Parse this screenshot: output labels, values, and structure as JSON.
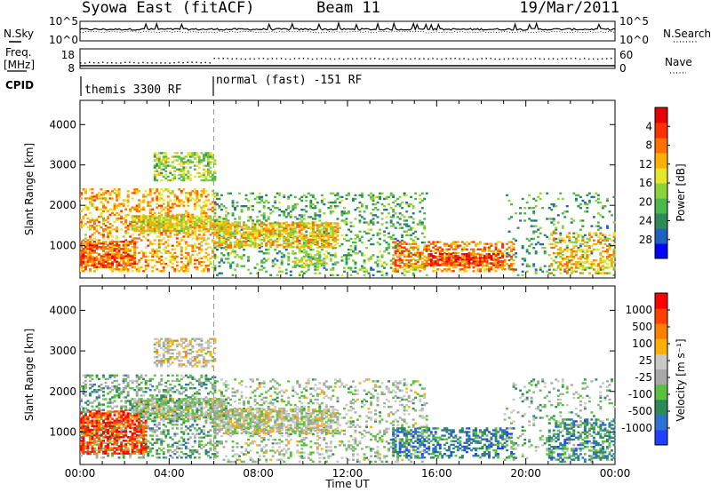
{
  "header": {
    "station": "Syowa East (fitACF)",
    "beam": "Beam 11",
    "date": "19/Mar/2011"
  },
  "strip_labels": {
    "nsky": "N.Sky",
    "nsky_ticks": [
      "10^5",
      "10^0"
    ],
    "nsearch": "N.Search",
    "freq": "Freq.",
    "freq_unit": "[MHz]",
    "freq_ticks": [
      "18",
      "8"
    ],
    "nave": "Nave",
    "nave_ticks": [
      "60",
      "0"
    ],
    "cpid": "CPID",
    "cpid_mode_1": "themis 3300 RF",
    "cpid_mode_2": "normal (fast) -151 RF"
  },
  "chart_data": [
    {
      "type": "heatmap",
      "title": "",
      "xlabel": "Time UT",
      "ylabel": "Slant Range [km]",
      "x_ticks": [
        "00:00",
        "04:00",
        "08:00",
        "12:00",
        "16:00",
        "20:00",
        "00:00"
      ],
      "xlim_hours": [
        0,
        24
      ],
      "y_ticks": [
        "1000",
        "2000",
        "3000",
        "4000"
      ],
      "ylim": [
        200,
        4600
      ],
      "colorbar": {
        "label": "Power [dB]",
        "ticks": [
          "4",
          "8",
          "12",
          "16",
          "20",
          "24",
          "28"
        ],
        "range": [
          0,
          30
        ],
        "colors": [
          "#0000ff",
          "#2060c0",
          "#2e8b57",
          "#4cb84c",
          "#8ed23a",
          "#e6e62a",
          "#ffb000",
          "#ff7000",
          "#ff3000",
          "#e60000"
        ]
      },
      "mode_change_hour": 6,
      "echo_regions": [
        {
          "t": [
            0.0,
            6.0
          ],
          "r": [
            350,
            2400
          ],
          "level": 0.65,
          "density": 0.35
        },
        {
          "t": [
            0.0,
            2.5
          ],
          "r": [
            450,
            1100
          ],
          "level": 0.78,
          "density": 0.65
        },
        {
          "t": [
            2.3,
            6.5
          ],
          "r": [
            1350,
            1750
          ],
          "level": 0.55,
          "density": 0.7
        },
        {
          "t": [
            3.3,
            6.0
          ],
          "r": [
            2600,
            3300
          ],
          "level": 0.45,
          "density": 0.45
        },
        {
          "t": [
            6.0,
            15.5
          ],
          "r": [
            250,
            2300
          ],
          "level": 0.35,
          "density": 0.22
        },
        {
          "t": [
            6.0,
            11.5
          ],
          "r": [
            950,
            1550
          ],
          "level": 0.6,
          "density": 0.6
        },
        {
          "t": [
            9.5,
            11.0
          ],
          "r": [
            450,
            850
          ],
          "level": 0.5,
          "density": 0.45
        },
        {
          "t": [
            14.0,
            19.5
          ],
          "r": [
            350,
            1100
          ],
          "level": 0.72,
          "density": 0.45
        },
        {
          "t": [
            15.5,
            19.0
          ],
          "r": [
            500,
            800
          ],
          "level": 0.85,
          "density": 0.6
        },
        {
          "t": [
            19.0,
            24.0
          ],
          "r": [
            250,
            2300
          ],
          "level": 0.3,
          "density": 0.12
        },
        {
          "t": [
            21.0,
            24.0
          ],
          "r": [
            300,
            1300
          ],
          "level": 0.62,
          "density": 0.4
        }
      ]
    },
    {
      "type": "heatmap",
      "title": "",
      "xlabel": "Time UT",
      "ylabel": "Slant Range [km]",
      "x_ticks": [
        "00:00",
        "04:00",
        "08:00",
        "12:00",
        "16:00",
        "20:00",
        "00:00"
      ],
      "xlim_hours": [
        0,
        24
      ],
      "y_ticks": [
        "1000",
        "2000",
        "3000",
        "4000"
      ],
      "ylim": [
        200,
        4600
      ],
      "colorbar": {
        "label": "Velocity [m s⁻¹]",
        "ticks": [
          "1000",
          "500",
          "100",
          "25",
          "-25",
          "-100",
          "-500",
          "-1000"
        ],
        "range": [
          -1000,
          1000
        ],
        "colors": [
          "#2040ff",
          "#2f6fd0",
          "#2e8b57",
          "#5cc040",
          "#a8a8a8",
          "#c8c8c8",
          "#ffb000",
          "#ff8000",
          "#ff4000",
          "#ff0000"
        ]
      },
      "mode_change_hour": 6,
      "echo_regions": [
        {
          "t": [
            0.0,
            6.0
          ],
          "r": [
            350,
            2400
          ],
          "level": 0.35,
          "density": 0.35
        },
        {
          "t": [
            0.0,
            3.0
          ],
          "r": [
            450,
            1500
          ],
          "level": 0.85,
          "density": 0.6
        },
        {
          "t": [
            2.3,
            6.5
          ],
          "r": [
            1300,
            1800
          ],
          "level": 0.45,
          "density": 0.65
        },
        {
          "t": [
            3.3,
            6.0
          ],
          "r": [
            2600,
            3300
          ],
          "level": 0.55,
          "density": 0.45
        },
        {
          "t": [
            6.0,
            15.5
          ],
          "r": [
            250,
            2300
          ],
          "level": 0.45,
          "density": 0.22
        },
        {
          "t": [
            6.0,
            11.5
          ],
          "r": [
            950,
            1550
          ],
          "level": 0.48,
          "density": 0.6
        },
        {
          "t": [
            14.0,
            19.5
          ],
          "r": [
            350,
            1100
          ],
          "level": 0.22,
          "density": 0.45
        },
        {
          "t": [
            19.0,
            24.0
          ],
          "r": [
            250,
            2300
          ],
          "level": 0.4,
          "density": 0.12
        },
        {
          "t": [
            21.0,
            24.0
          ],
          "r": [
            300,
            1300
          ],
          "level": 0.25,
          "density": 0.4
        }
      ]
    }
  ]
}
